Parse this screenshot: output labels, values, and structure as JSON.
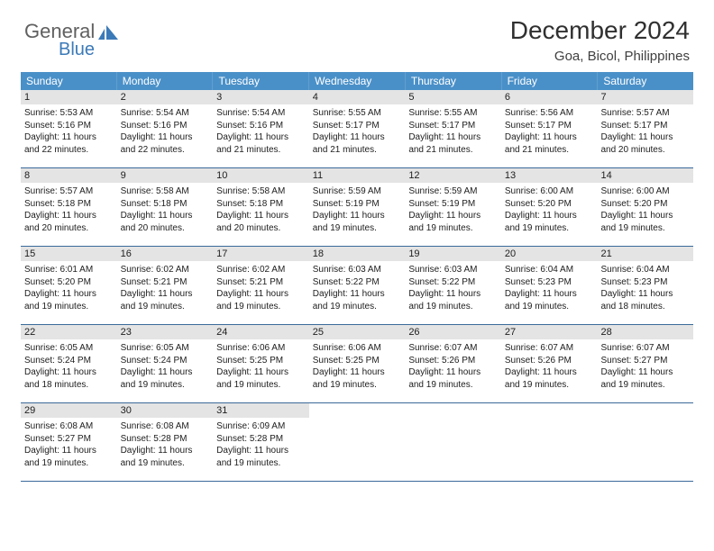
{
  "logo": {
    "word1": "General",
    "word2": "Blue",
    "color1": "#606060",
    "color2": "#3b7ab8"
  },
  "title": "December 2024",
  "location": "Goa, Bicol, Philippines",
  "colors": {
    "header_bg": "#4a90c8",
    "header_text": "#ffffff",
    "daynum_bg": "#e4e4e4",
    "week_border": "#3a6a9a",
    "body_text": "#202020"
  },
  "day_headers": [
    "Sunday",
    "Monday",
    "Tuesday",
    "Wednesday",
    "Thursday",
    "Friday",
    "Saturday"
  ],
  "days": [
    {
      "n": 1,
      "sr": "5:53 AM",
      "ss": "5:16 PM",
      "dl": "11 hours and 22 minutes."
    },
    {
      "n": 2,
      "sr": "5:54 AM",
      "ss": "5:16 PM",
      "dl": "11 hours and 22 minutes."
    },
    {
      "n": 3,
      "sr": "5:54 AM",
      "ss": "5:16 PM",
      "dl": "11 hours and 21 minutes."
    },
    {
      "n": 4,
      "sr": "5:55 AM",
      "ss": "5:17 PM",
      "dl": "11 hours and 21 minutes."
    },
    {
      "n": 5,
      "sr": "5:55 AM",
      "ss": "5:17 PM",
      "dl": "11 hours and 21 minutes."
    },
    {
      "n": 6,
      "sr": "5:56 AM",
      "ss": "5:17 PM",
      "dl": "11 hours and 21 minutes."
    },
    {
      "n": 7,
      "sr": "5:57 AM",
      "ss": "5:17 PM",
      "dl": "11 hours and 20 minutes."
    },
    {
      "n": 8,
      "sr": "5:57 AM",
      "ss": "5:18 PM",
      "dl": "11 hours and 20 minutes."
    },
    {
      "n": 9,
      "sr": "5:58 AM",
      "ss": "5:18 PM",
      "dl": "11 hours and 20 minutes."
    },
    {
      "n": 10,
      "sr": "5:58 AM",
      "ss": "5:18 PM",
      "dl": "11 hours and 20 minutes."
    },
    {
      "n": 11,
      "sr": "5:59 AM",
      "ss": "5:19 PM",
      "dl": "11 hours and 19 minutes."
    },
    {
      "n": 12,
      "sr": "5:59 AM",
      "ss": "5:19 PM",
      "dl": "11 hours and 19 minutes."
    },
    {
      "n": 13,
      "sr": "6:00 AM",
      "ss": "5:20 PM",
      "dl": "11 hours and 19 minutes."
    },
    {
      "n": 14,
      "sr": "6:00 AM",
      "ss": "5:20 PM",
      "dl": "11 hours and 19 minutes."
    },
    {
      "n": 15,
      "sr": "6:01 AM",
      "ss": "5:20 PM",
      "dl": "11 hours and 19 minutes."
    },
    {
      "n": 16,
      "sr": "6:02 AM",
      "ss": "5:21 PM",
      "dl": "11 hours and 19 minutes."
    },
    {
      "n": 17,
      "sr": "6:02 AM",
      "ss": "5:21 PM",
      "dl": "11 hours and 19 minutes."
    },
    {
      "n": 18,
      "sr": "6:03 AM",
      "ss": "5:22 PM",
      "dl": "11 hours and 19 minutes."
    },
    {
      "n": 19,
      "sr": "6:03 AM",
      "ss": "5:22 PM",
      "dl": "11 hours and 19 minutes."
    },
    {
      "n": 20,
      "sr": "6:04 AM",
      "ss": "5:23 PM",
      "dl": "11 hours and 19 minutes."
    },
    {
      "n": 21,
      "sr": "6:04 AM",
      "ss": "5:23 PM",
      "dl": "11 hours and 18 minutes."
    },
    {
      "n": 22,
      "sr": "6:05 AM",
      "ss": "5:24 PM",
      "dl": "11 hours and 18 minutes."
    },
    {
      "n": 23,
      "sr": "6:05 AM",
      "ss": "5:24 PM",
      "dl": "11 hours and 19 minutes."
    },
    {
      "n": 24,
      "sr": "6:06 AM",
      "ss": "5:25 PM",
      "dl": "11 hours and 19 minutes."
    },
    {
      "n": 25,
      "sr": "6:06 AM",
      "ss": "5:25 PM",
      "dl": "11 hours and 19 minutes."
    },
    {
      "n": 26,
      "sr": "6:07 AM",
      "ss": "5:26 PM",
      "dl": "11 hours and 19 minutes."
    },
    {
      "n": 27,
      "sr": "6:07 AM",
      "ss": "5:26 PM",
      "dl": "11 hours and 19 minutes."
    },
    {
      "n": 28,
      "sr": "6:07 AM",
      "ss": "5:27 PM",
      "dl": "11 hours and 19 minutes."
    },
    {
      "n": 29,
      "sr": "6:08 AM",
      "ss": "5:27 PM",
      "dl": "11 hours and 19 minutes."
    },
    {
      "n": 30,
      "sr": "6:08 AM",
      "ss": "5:28 PM",
      "dl": "11 hours and 19 minutes."
    },
    {
      "n": 31,
      "sr": "6:09 AM",
      "ss": "5:28 PM",
      "dl": "11 hours and 19 minutes."
    }
  ],
  "labels": {
    "sunrise": "Sunrise: ",
    "sunset": "Sunset: ",
    "daylight": "Daylight: "
  }
}
